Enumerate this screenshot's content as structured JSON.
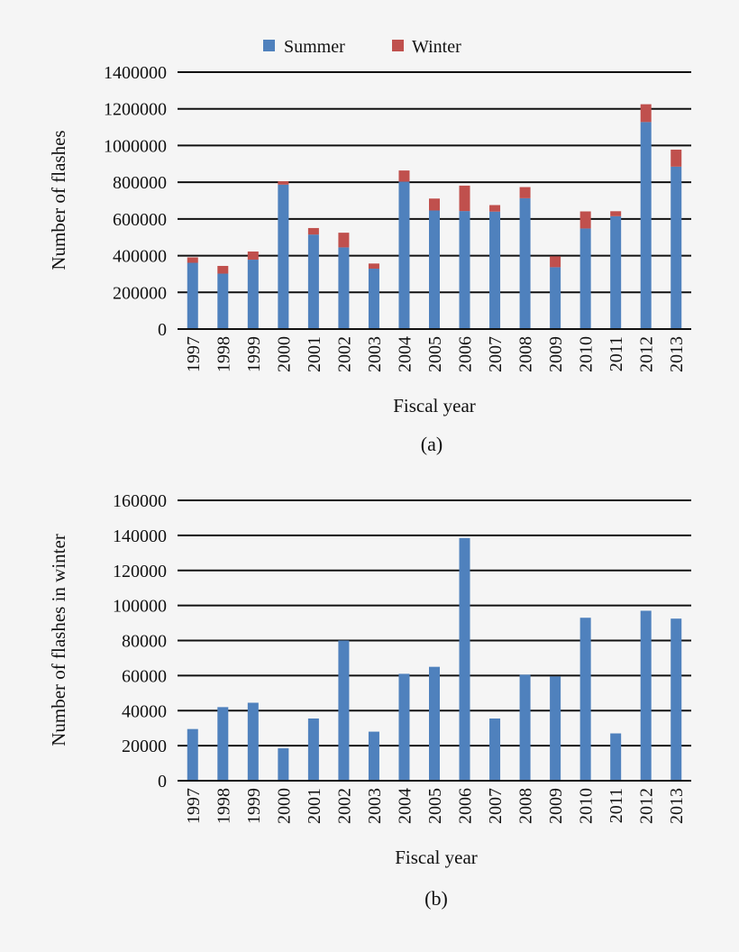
{
  "colors": {
    "summer": "#4f81bd",
    "winter": "#c0504d",
    "grid": "#111111",
    "background": "#f5f5f5"
  },
  "chart_data": [
    {
      "type": "bar",
      "stacked": true,
      "panel_label": "(a)",
      "categories": [
        "1997",
        "1998",
        "1999",
        "2000",
        "2001",
        "2002",
        "2003",
        "2004",
        "2005",
        "2006",
        "2007",
        "2008",
        "2009",
        "2010",
        "2011",
        "2012",
        "2013"
      ],
      "series": [
        {
          "name": "Summer",
          "values": [
            361000,
            302000,
            378000,
            787000,
            515000,
            445000,
            329000,
            803000,
            646000,
            643000,
            640000,
            713000,
            337000,
            548000,
            615000,
            1128000,
            885000
          ]
        },
        {
          "name": "Winter",
          "values": [
            29500,
            42000,
            44500,
            18500,
            35500,
            80000,
            28000,
            61000,
            65000,
            138500,
            35500,
            60500,
            59500,
            93000,
            27000,
            97000,
            92500
          ]
        }
      ],
      "xlabel": "Fiscal year",
      "ylabel": "Number of flashes",
      "ylim": [
        0,
        1400000
      ],
      "yticks": [
        0,
        200000,
        400000,
        600000,
        800000,
        1000000,
        1200000,
        1400000
      ],
      "grid": true,
      "legend": "top-center"
    },
    {
      "type": "bar",
      "panel_label": "(b)",
      "categories": [
        "1997",
        "1998",
        "1999",
        "2000",
        "2001",
        "2002",
        "2003",
        "2004",
        "2005",
        "2006",
        "2007",
        "2008",
        "2009",
        "2010",
        "2011",
        "2012",
        "2013"
      ],
      "values": [
        29500,
        42000,
        44500,
        18500,
        35500,
        80000,
        28000,
        61000,
        65000,
        138500,
        35500,
        60500,
        59500,
        93000,
        27000,
        97000,
        92500
      ],
      "xlabel": "Fiscal year",
      "ylabel": "Number of flashes in winter",
      "ylim": [
        0,
        160000
      ],
      "yticks": [
        0,
        20000,
        40000,
        60000,
        80000,
        100000,
        120000,
        140000,
        160000
      ],
      "grid": true
    }
  ]
}
